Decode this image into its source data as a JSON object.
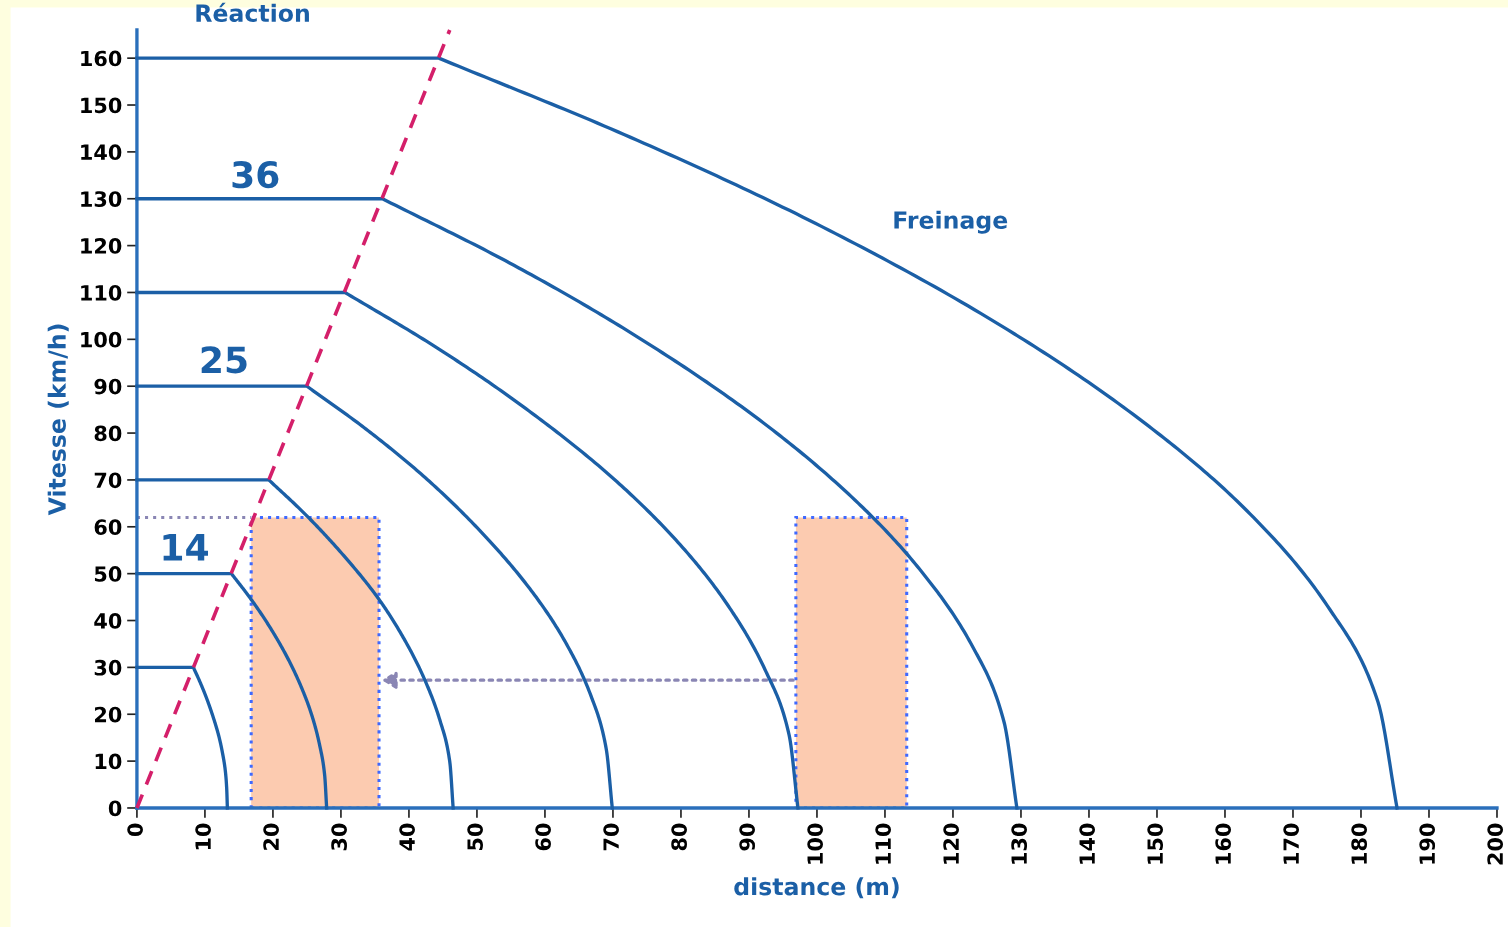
{
  "chart_data": {
    "type": "line",
    "title": "Réaction",
    "xlabel": "distance (m)",
    "ylabel": "Vitesse (km/h)",
    "xlim": [
      0,
      200
    ],
    "ylim": [
      0,
      166
    ],
    "xticks": [
      0,
      10,
      20,
      30,
      40,
      50,
      60,
      70,
      80,
      90,
      100,
      110,
      120,
      130,
      140,
      150,
      160,
      170,
      180,
      190,
      200
    ],
    "yticks": [
      0,
      10,
      20,
      30,
      40,
      50,
      60,
      70,
      80,
      90,
      100,
      110,
      120,
      130,
      140,
      150,
      160
    ],
    "grid": false,
    "marker": "none",
    "series": [
      {
        "color": "#1b5fa6",
        "x": [
          0,
          8.3,
          9.3,
          10.3,
          11.3,
          12.1,
          12.6,
          13.0,
          13.2,
          13.3
        ],
        "values": [
          30,
          30,
          26.8,
          23.2,
          19,
          15,
          11.6,
          7.9,
          4.2,
          0
        ]
      },
      {
        "color": "#1b5fa6",
        "x": [
          0,
          13.9,
          16.7,
          19.5,
          22.3,
          24.4,
          25.8,
          26.9,
          27.6,
          27.9
        ],
        "values": [
          50,
          50,
          44.7,
          38.7,
          31.6,
          25,
          19.4,
          13.2,
          7.1,
          0
        ]
      },
      {
        "color": "#1b5fa6",
        "x": [
          0,
          19.4,
          24.8,
          30.2,
          35.7,
          39.7,
          42.4,
          44.6,
          46.0,
          46.5
        ],
        "values": [
          70,
          70,
          62.6,
          54.2,
          44.3,
          35,
          27.1,
          18.5,
          9.9,
          0
        ]
      },
      {
        "color": "#1b5fa6",
        "x": [
          0,
          25,
          34,
          43,
          51.9,
          58.7,
          63.2,
          66.8,
          69.0,
          69.9
        ],
        "values": [
          90,
          90,
          80.5,
          69.7,
          56.9,
          45,
          34.9,
          23.8,
          12.7,
          0
        ]
      },
      {
        "color": "#1b5fa6",
        "x": [
          0,
          30.6,
          43.9,
          57.2,
          70.6,
          80.6,
          87.2,
          92.5,
          95.9,
          97.2
        ],
        "values": [
          110,
          110,
          98.4,
          85.2,
          69.6,
          55,
          42.6,
          29.1,
          15.6,
          0
        ]
      },
      {
        "color": "#1b5fa6",
        "x": [
          0,
          36.1,
          54.8,
          73.4,
          92.1,
          106.1,
          115.4,
          122.9,
          127.5,
          129.4
        ],
        "values": [
          130,
          130,
          116.3,
          100.7,
          82.2,
          65,
          50.4,
          34.4,
          18.4,
          0
        ]
      },
      {
        "color": "#1b5fa6",
        "x": [
          0,
          44.4,
          72.6,
          100.8,
          129,
          150.1,
          164.2,
          175.4,
          182.5,
          185.3
        ],
        "values": [
          160,
          160,
          143.1,
          124,
          101.2,
          80,
          62,
          42.4,
          22.6,
          0
        ]
      },
      {
        "color": "#d41f6a",
        "line_style": "dashed",
        "x": [
          0,
          46
        ],
        "values": [
          0,
          166
        ]
      }
    ],
    "bands": [
      {
        "axis": "x",
        "from": 16.8,
        "to": 35.6,
        "color": "#fcc3a3"
      },
      {
        "axis": "x",
        "from": 96.9,
        "to": 113.2,
        "color": "#fcc3a3"
      }
    ],
    "ref_lines": [
      {
        "axis": "y",
        "value": 62,
        "color": "#8a86b4",
        "line_style": "dotted"
      }
    ],
    "annotations": [
      "36",
      "25",
      "14",
      "Freinage"
    ]
  }
}
